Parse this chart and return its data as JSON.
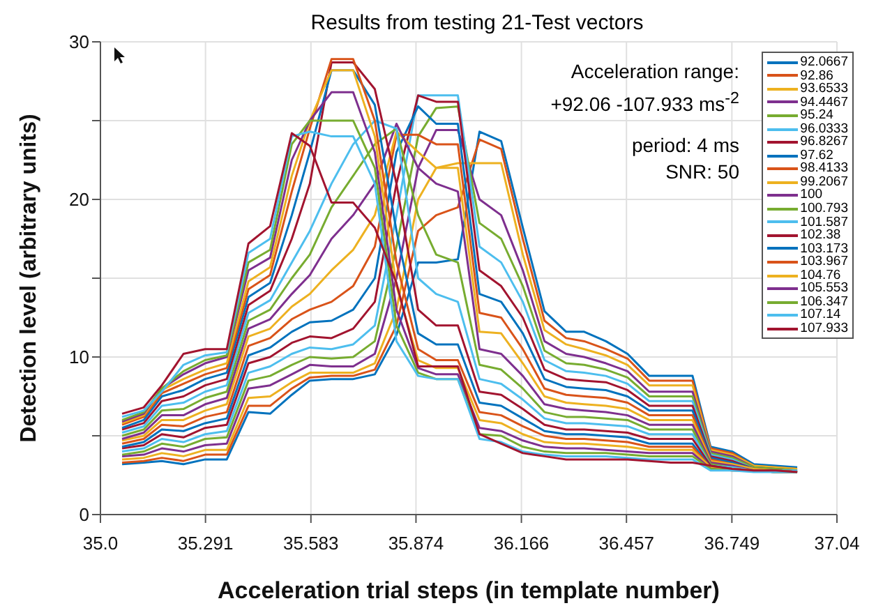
{
  "chart_data": {
    "type": "line",
    "title": "Results from testing 21-Test vectors",
    "xlabel": "Acceleration trial steps (in template number)",
    "ylabel": "Detection level (arbitrary units)",
    "annotations": [
      "Acceleration range:",
      "+92.06 -107.933 ms$^{-2}$",
      "period: 4 ms",
      "SNR: 50"
    ],
    "legend": "top right",
    "grid": true,
    "line_style": "solid",
    "xlim": [
      35.0,
      37.04
    ],
    "xticks": [
      {
        "value": 35.0,
        "label": "35.0"
      },
      35.291,
      35.583,
      35.874,
      36.166,
      36.457,
      36.749,
      37.04
    ],
    "ylim": [
      0,
      30
    ],
    "yticks": [
      0,
      {
        "value": 5,
        "label": null
      },
      10,
      {
        "value": 15,
        "label": null
      },
      20,
      {
        "value": 25,
        "label": null
      },
      30
    ],
    "x": [
      35.06,
      35.12,
      35.17,
      35.23,
      35.29,
      35.35,
      35.41,
      35.47,
      35.53,
      35.58,
      35.64,
      35.7,
      35.76,
      35.82,
      35.88,
      35.93,
      35.99,
      36.05,
      36.11,
      36.17,
      36.23,
      36.29,
      36.34,
      36.4,
      36.46,
      36.52,
      36.58,
      36.64,
      36.69,
      36.75,
      36.81,
      36.87,
      36.93
    ],
    "series": [
      {
        "name": "92.0667",
        "color": "#0072bd",
        "values": [
          3.2,
          3.3,
          3.4,
          3.2,
          3.5,
          3.5,
          6.5,
          6.4,
          7.6,
          8.5,
          8.6,
          8.6,
          8.9,
          11.4,
          16.0,
          16.0,
          16.2,
          24.3,
          23.7,
          18.2,
          12.9,
          11.6,
          11.6,
          11.0,
          10.2,
          8.8,
          8.8,
          8.8,
          4.3,
          4.0,
          3.2,
          3.1,
          3.0
        ]
      },
      {
        "name": "92.86",
        "color": "#d95319",
        "values": [
          3.3,
          3.4,
          3.6,
          3.4,
          3.8,
          3.8,
          6.9,
          6.9,
          8.0,
          8.7,
          8.8,
          8.8,
          9.2,
          12.0,
          18.0,
          19.0,
          19.5,
          23.8,
          23.2,
          17.5,
          12.3,
          11.2,
          11.0,
          10.5,
          9.9,
          8.5,
          8.5,
          8.5,
          4.2,
          3.9,
          3.1,
          3.0,
          2.9
        ]
      },
      {
        "name": "93.6533",
        "color": "#edb120",
        "values": [
          3.5,
          3.6,
          3.9,
          3.7,
          4.1,
          4.1,
          7.4,
          7.5,
          8.4,
          9.0,
          9.0,
          9.0,
          9.6,
          13.0,
          20.0,
          22.0,
          22.3,
          22.3,
          22.3,
          16.5,
          11.7,
          10.8,
          10.5,
          10.1,
          9.5,
          8.2,
          8.2,
          8.2,
          4.1,
          3.8,
          3.1,
          3.0,
          2.9
        ]
      },
      {
        "name": "94.4467",
        "color": "#7e2f8e",
        "values": [
          3.7,
          3.8,
          4.2,
          4.0,
          4.4,
          4.5,
          8.0,
          8.2,
          8.9,
          9.5,
          9.4,
          9.4,
          10.2,
          15.0,
          22.0,
          24.4,
          24.4,
          20.0,
          19.0,
          15.5,
          11.0,
          10.2,
          10.0,
          9.6,
          9.1,
          7.8,
          7.8,
          7.8,
          4.0,
          3.7,
          3.0,
          2.9,
          2.8
        ]
      },
      {
        "name": "95.24",
        "color": "#77ac30",
        "values": [
          3.8,
          4.0,
          4.5,
          4.3,
          4.8,
          4.9,
          8.5,
          8.8,
          9.5,
          10.0,
          9.9,
          10.0,
          11.0,
          17.0,
          24.0,
          25.8,
          25.9,
          18.5,
          17.5,
          14.5,
          10.4,
          9.6,
          9.5,
          9.2,
          8.7,
          7.5,
          7.5,
          7.5,
          3.9,
          3.6,
          3.0,
          2.9,
          2.8
        ]
      },
      {
        "name": "96.0333",
        "color": "#4dbeee",
        "values": [
          4.0,
          4.2,
          4.8,
          4.6,
          5.1,
          5.3,
          9.0,
          9.4,
          10.2,
          10.6,
          10.5,
          10.8,
          12.0,
          19.0,
          26.6,
          26.6,
          26.6,
          17.0,
          16.0,
          13.5,
          9.8,
          9.1,
          9.0,
          8.8,
          8.3,
          7.2,
          7.2,
          7.2,
          3.8,
          3.5,
          2.9,
          2.8,
          2.8
        ]
      },
      {
        "name": "96.8267",
        "color": "#a2142f",
        "values": [
          4.2,
          4.4,
          5.1,
          4.9,
          5.5,
          5.7,
          9.6,
          10.0,
          10.9,
          11.3,
          11.2,
          11.8,
          13.5,
          21.0,
          26.6,
          26.2,
          26.2,
          15.5,
          14.5,
          12.5,
          9.2,
          8.6,
          8.5,
          8.4,
          7.9,
          6.9,
          6.9,
          6.9,
          3.7,
          3.4,
          2.9,
          2.8,
          2.7
        ]
      },
      {
        "name": "97.62",
        "color": "#0072bd",
        "values": [
          4.3,
          4.6,
          5.4,
          5.3,
          5.8,
          6.1,
          10.1,
          10.6,
          11.6,
          12.2,
          12.3,
          13.0,
          15.0,
          23.0,
          25.9,
          24.8,
          24.8,
          14.0,
          13.5,
          11.5,
          8.6,
          8.1,
          8.0,
          7.9,
          7.5,
          6.6,
          6.6,
          6.6,
          3.6,
          3.3,
          2.9,
          2.8,
          2.7
        ]
      },
      {
        "name": "98.4133",
        "color": "#d95319",
        "values": [
          4.5,
          4.8,
          5.7,
          5.6,
          6.2,
          6.5,
          10.7,
          11.2,
          12.4,
          13.0,
          13.5,
          14.5,
          17.0,
          24.1,
          24.1,
          23.5,
          23.5,
          12.8,
          12.5,
          10.5,
          8.0,
          7.6,
          7.5,
          7.4,
          7.1,
          6.3,
          6.3,
          6.3,
          3.5,
          3.2,
          2.9,
          2.8,
          2.7
        ]
      },
      {
        "name": "99.2067",
        "color": "#edb120",
        "values": [
          4.7,
          5.0,
          6.0,
          6.0,
          6.6,
          7.0,
          11.3,
          11.8,
          13.2,
          14.0,
          15.5,
          16.8,
          19.0,
          24.3,
          23.0,
          22.0,
          22.0,
          11.6,
          11.5,
          9.6,
          7.5,
          7.1,
          7.0,
          6.9,
          6.7,
          6.0,
          6.0,
          6.0,
          3.4,
          3.2,
          2.9,
          2.8,
          2.7
        ]
      },
      {
        "name": "100",
        "color": "#7e2f8e",
        "values": [
          4.8,
          5.2,
          6.3,
          6.3,
          7.0,
          7.4,
          11.8,
          12.4,
          14.0,
          15.2,
          17.5,
          19.0,
          21.0,
          24.8,
          22.0,
          21.0,
          20.5,
          10.5,
          10.2,
          8.8,
          7.0,
          6.7,
          6.6,
          6.5,
          6.3,
          5.7,
          5.7,
          5.7,
          3.3,
          3.1,
          2.8,
          2.8,
          2.7
        ]
      },
      {
        "name": "100.793",
        "color": "#77ac30",
        "values": [
          5.0,
          5.4,
          6.6,
          6.7,
          7.4,
          7.8,
          12.3,
          13.0,
          15.0,
          16.5,
          19.5,
          21.5,
          23.5,
          24.5,
          19.0,
          16.5,
          16.0,
          9.5,
          9.2,
          8.0,
          6.5,
          6.2,
          6.2,
          6.1,
          6.0,
          5.4,
          5.4,
          5.4,
          3.2,
          3.0,
          2.8,
          2.8,
          2.7
        ]
      },
      {
        "name": "101.587",
        "color": "#4dbeee",
        "values": [
          5.2,
          5.6,
          6.9,
          7.1,
          7.8,
          8.2,
          12.8,
          13.6,
          16.0,
          18.0,
          21.0,
          23.5,
          25.0,
          24.5,
          15.0,
          14.0,
          13.5,
          8.6,
          8.3,
          7.3,
          6.1,
          5.8,
          5.8,
          5.7,
          5.6,
          5.1,
          5.1,
          5.1,
          3.1,
          3.0,
          2.8,
          2.7,
          2.7
        ]
      },
      {
        "name": "102.38",
        "color": "#a2142f",
        "values": [
          5.4,
          5.8,
          7.2,
          7.5,
          8.2,
          8.6,
          13.3,
          14.2,
          17.5,
          21.0,
          28.7,
          28.7,
          27.0,
          21.0,
          13.0,
          12.0,
          12.0,
          7.8,
          7.6,
          6.7,
          5.7,
          5.4,
          5.4,
          5.3,
          5.2,
          4.8,
          4.8,
          4.8,
          3.1,
          2.9,
          2.8,
          2.7,
          2.7
        ]
      },
      {
        "name": "103.173",
        "color": "#0072bd",
        "values": [
          5.5,
          6.0,
          7.5,
          7.9,
          8.6,
          9.0,
          13.8,
          14.7,
          19.0,
          23.0,
          28.2,
          28.2,
          26.0,
          18.0,
          11.5,
          10.8,
          10.8,
          7.1,
          6.9,
          6.1,
          5.3,
          5.1,
          5.1,
          5.0,
          4.9,
          4.5,
          4.5,
          4.5,
          3.0,
          2.9,
          2.8,
          2.7,
          2.7
        ]
      },
      {
        "name": "103.967",
        "color": "#d95319",
        "values": [
          5.7,
          6.2,
          7.7,
          8.3,
          8.9,
          9.3,
          14.3,
          15.2,
          20.5,
          24.5,
          28.9,
          28.9,
          25.0,
          16.0,
          10.5,
          9.8,
          9.8,
          6.5,
          6.3,
          5.6,
          5.0,
          4.8,
          4.8,
          4.7,
          4.6,
          4.3,
          4.3,
          4.3,
          3.0,
          2.9,
          2.8,
          2.7,
          2.7
        ]
      },
      {
        "name": "104.76",
        "color": "#edb120",
        "values": [
          5.8,
          6.3,
          7.9,
          8.6,
          9.2,
          9.6,
          14.8,
          15.7,
          21.5,
          25.0,
          28.2,
          28.2,
          24.0,
          14.5,
          9.8,
          9.3,
          9.3,
          6.0,
          5.8,
          5.1,
          4.6,
          4.5,
          4.5,
          4.4,
          4.3,
          4.1,
          4.1,
          4.1,
          3.0,
          2.9,
          2.8,
          2.7,
          2.7
        ]
      },
      {
        "name": "105.553",
        "color": "#7e2f8e",
        "values": [
          5.9,
          6.4,
          8.0,
          8.9,
          9.6,
          10.0,
          15.5,
          16.3,
          22.5,
          25.0,
          26.8,
          26.8,
          23.0,
          13.0,
          9.3,
          8.9,
          8.9,
          5.5,
          5.3,
          4.7,
          4.3,
          4.2,
          4.2,
          4.1,
          4.0,
          3.9,
          3.9,
          3.9,
          2.9,
          2.8,
          2.8,
          2.7,
          2.7
        ]
      },
      {
        "name": "106.347",
        "color": "#77ac30",
        "values": [
          6.0,
          6.5,
          8.0,
          9.1,
          9.8,
          10.1,
          16.0,
          16.8,
          23.5,
          25.0,
          25.0,
          25.0,
          22.0,
          12.0,
          9.0,
          8.6,
          8.6,
          5.1,
          5.0,
          4.3,
          4.0,
          3.9,
          3.9,
          3.9,
          3.8,
          3.7,
          3.7,
          3.7,
          2.9,
          2.8,
          2.8,
          2.7,
          2.7
        ]
      },
      {
        "name": "107.14",
        "color": "#4dbeee",
        "values": [
          6.2,
          6.6,
          7.8,
          9.5,
          10.1,
          10.3,
          16.6,
          17.5,
          24.0,
          24.3,
          24.0,
          24.0,
          21.0,
          11.0,
          8.8,
          8.6,
          8.6,
          4.8,
          4.6,
          4.0,
          3.8,
          3.7,
          3.7,
          3.7,
          3.6,
          3.5,
          3.5,
          3.5,
          2.8,
          2.8,
          2.7,
          2.7,
          2.7
        ]
      },
      {
        "name": "107.933",
        "color": "#a2142f",
        "values": [
          6.4,
          6.8,
          8.2,
          10.2,
          10.5,
          10.5,
          17.2,
          18.3,
          24.2,
          23.4,
          19.8,
          19.8,
          18.2,
          14.7,
          9.4,
          9.4,
          9.4,
          5.1,
          4.5,
          3.9,
          3.7,
          3.5,
          3.5,
          3.5,
          3.5,
          3.4,
          3.3,
          3.3,
          3.1,
          2.9,
          2.8,
          2.8,
          2.7
        ]
      }
    ]
  }
}
